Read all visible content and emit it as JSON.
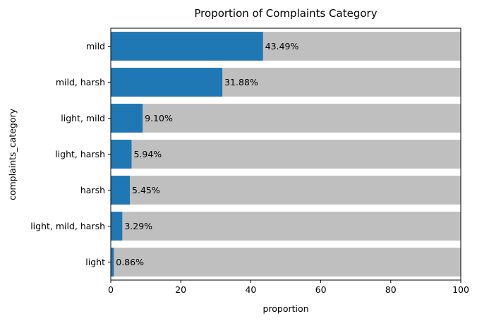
{
  "chart_data": {
    "type": "bar",
    "orientation": "horizontal",
    "title": "Proportion of Complaints Category",
    "xlabel": "proportion",
    "ylabel": "complaints_category",
    "xlim": [
      0,
      100
    ],
    "x_ticks": [
      0,
      20,
      40,
      60,
      80,
      100
    ],
    "categories": [
      "mild",
      "mild, harsh",
      "light, mild",
      "light, harsh",
      "harsh",
      "light, mild, harsh",
      "light"
    ],
    "values": [
      43.49,
      31.88,
      9.1,
      5.94,
      5.45,
      3.29,
      0.86
    ],
    "data_labels": [
      "43.49%",
      "31.88%",
      "9.10%",
      "5.94%",
      "5.45%",
      "3.29%",
      "0.86%"
    ],
    "background_bar_value": 100,
    "grid": false,
    "colors": {
      "bar": "#1f77b4",
      "background_bar": "#bfbfbf",
      "axis": "#000000"
    }
  }
}
